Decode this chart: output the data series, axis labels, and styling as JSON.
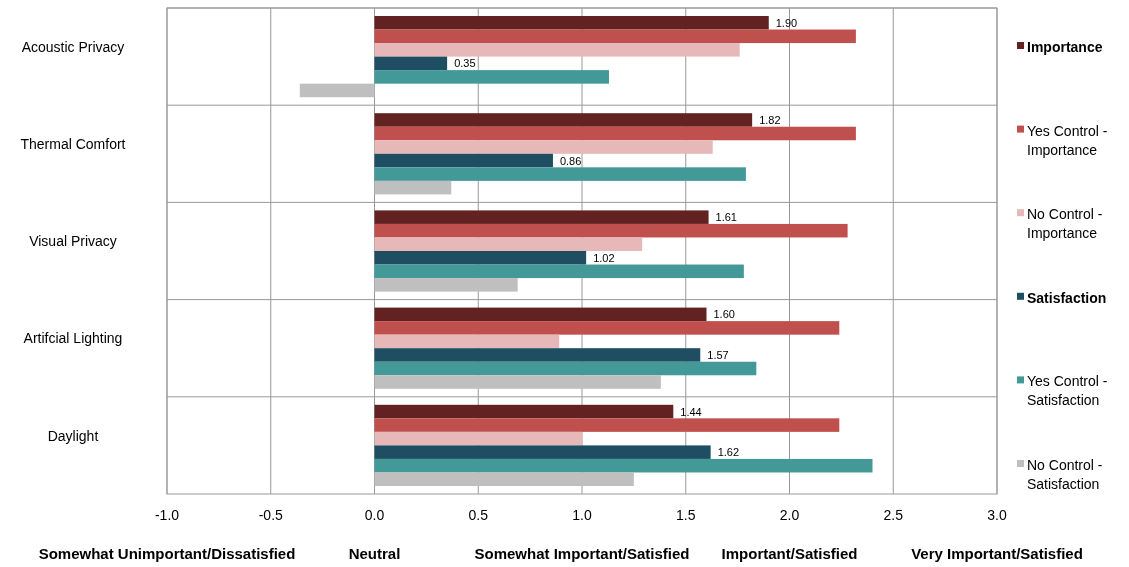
{
  "chart_data": {
    "type": "bar",
    "orientation": "horizontal",
    "categories": [
      "Acoustic Privacy",
      "Thermal Comfort",
      "Visual Privacy",
      "Artifcial Lighting",
      "Daylight"
    ],
    "series": [
      {
        "name": "Importance",
        "color": "#622222",
        "values": [
          1.9,
          1.82,
          1.61,
          1.6,
          1.44
        ],
        "value_labels": [
          "1.90",
          "1.82",
          "1.61",
          "1.60",
          "1.44"
        ]
      },
      {
        "name": "Yes Control - Importance",
        "color": "#c0504d",
        "values": [
          2.32,
          2.32,
          2.28,
          2.24,
          2.24
        ]
      },
      {
        "name": "No Control - Importance",
        "color": "#e6b9b8",
        "values": [
          1.76,
          1.63,
          1.29,
          0.89,
          1.0
        ]
      },
      {
        "name": "Satisfaction",
        "color": "#1f4e63",
        "values": [
          0.35,
          0.86,
          1.02,
          1.57,
          1.62
        ],
        "value_labels": [
          "0.35",
          "0.86",
          "1.02",
          "1.57",
          "1.62"
        ]
      },
      {
        "name": "Yes Control - Satisfaction",
        "color": "#429997",
        "values": [
          1.13,
          1.79,
          1.78,
          1.84,
          2.4
        ]
      },
      {
        "name": "No Control - Satisfaction",
        "color": "#bfbfbf",
        "values": [
          -0.36,
          0.37,
          0.69,
          1.38,
          1.25
        ]
      }
    ],
    "xlim": [
      -1,
      3
    ],
    "xticks": [
      {
        "value": -1,
        "label": "-1.0"
      },
      {
        "value": -0.5,
        "label": "-0.5"
      },
      {
        "value": 0,
        "label": "0.0"
      },
      0.5,
      {
        "value": 1,
        "label": "1.0"
      },
      1.5,
      {
        "value": 2,
        "label": "2.0"
      },
      2.5,
      {
        "value": 3,
        "label": "3.0"
      }
    ],
    "grid": true,
    "legend": "right",
    "annotations": [
      "Somewhat Unimportant/Dissatisfied",
      "Neutral",
      "Somewhat Important/Satisfied",
      "Important/Satisfied",
      "Very Important/Satisfied"
    ]
  }
}
